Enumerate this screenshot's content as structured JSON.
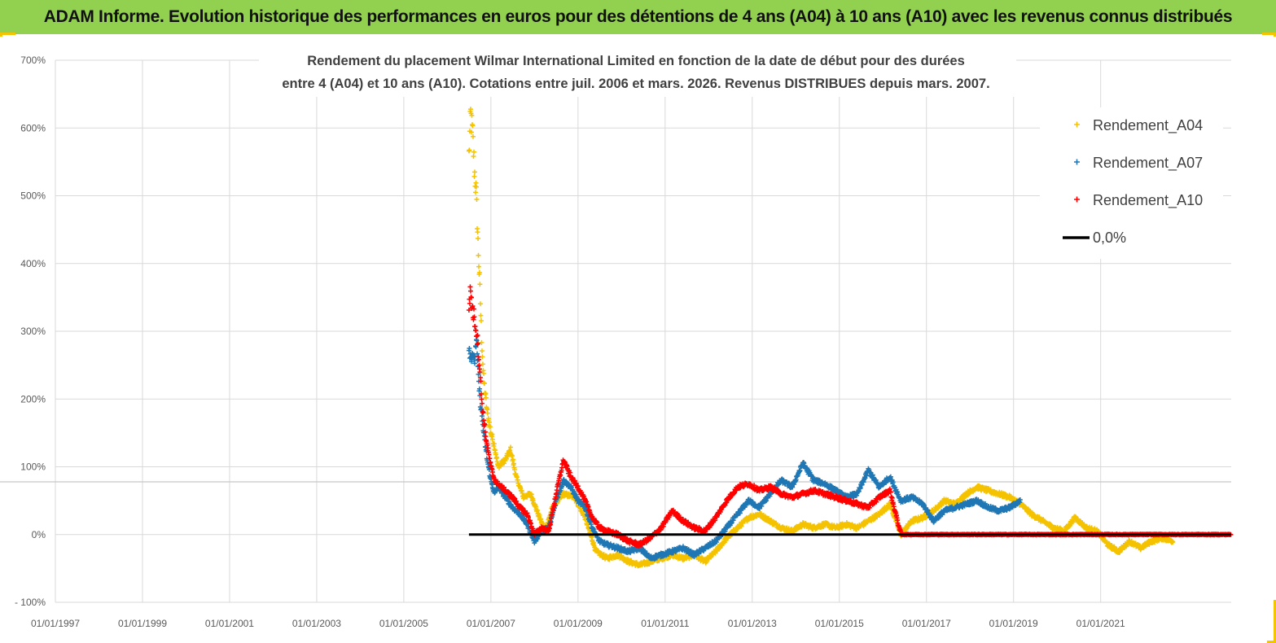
{
  "header": {
    "title": "ADAM Informe. Evolution historique des performances en euros pour des détentions de 4 ans (A04) à 10 ans (A10) avec les revenus connus distribués"
  },
  "chart_data": {
    "type": "scatter",
    "title_line1": "Rendement du placement Wilmar International Limited en fonction de la date de début pour des durées",
    "title_line2": "entre 4 (A04) et 10 ans (A10).  Cotations entre juil. 2006 et mars. 2026. Revenus DISTRIBUES depuis mars. 2007.",
    "y_ticks": [
      "700%",
      "600%",
      "500%",
      "400%",
      "300%",
      "200%",
      "100%",
      "0%",
      "- 100%"
    ],
    "x_ticks": [
      "01/01/1997",
      "01/01/1999",
      "01/01/2001",
      "01/01/2003",
      "01/01/2005",
      "01/01/2007",
      "01/01/2009",
      "01/01/2011",
      "01/01/2013",
      "01/01/2015",
      "01/01/2017",
      "01/01/2019",
      "01/01/2021"
    ],
    "ylim": [
      -100,
      700
    ],
    "xlim": [
      "1997-01-01",
      "2023-12-31"
    ],
    "grid": true,
    "legend_position": "top-right",
    "reference_line": {
      "name": "0,0%",
      "x": [
        "2006-07-01",
        "2023-12-31"
      ],
      "y": 0,
      "color": "#000000"
    },
    "series": [
      {
        "name": "Rendement_A04",
        "color": "#f5c200",
        "points": [
          [
            "2006-07-01",
            560
          ],
          [
            "2006-07-15",
            620
          ],
          [
            "2006-08-01",
            590
          ],
          [
            "2006-08-15",
            540
          ],
          [
            "2006-09-01",
            500
          ],
          [
            "2006-09-15",
            430
          ],
          [
            "2006-10-01",
            360
          ],
          [
            "2006-10-15",
            290
          ],
          [
            "2006-11-01",
            230
          ],
          [
            "2006-12-01",
            180
          ],
          [
            "2007-01-01",
            150
          ],
          [
            "2007-02-01",
            130
          ],
          [
            "2007-03-01",
            100
          ],
          [
            "2007-05-01",
            110
          ],
          [
            "2007-06-15",
            125
          ],
          [
            "2007-08-01",
            85
          ],
          [
            "2007-10-01",
            55
          ],
          [
            "2007-12-01",
            60
          ],
          [
            "2008-02-01",
            30
          ],
          [
            "2008-04-01",
            5
          ],
          [
            "2008-06-01",
            40
          ],
          [
            "2008-09-01",
            60
          ],
          [
            "2008-12-01",
            55
          ],
          [
            "2009-03-01",
            25
          ],
          [
            "2009-06-01",
            -25
          ],
          [
            "2009-09-01",
            -35
          ],
          [
            "2009-12-01",
            -30
          ],
          [
            "2010-03-01",
            -40
          ],
          [
            "2010-06-01",
            -45
          ],
          [
            "2010-09-01",
            -40
          ],
          [
            "2010-12-01",
            -35
          ],
          [
            "2011-03-01",
            -30
          ],
          [
            "2011-06-01",
            -35
          ],
          [
            "2011-09-01",
            -30
          ],
          [
            "2011-12-01",
            -40
          ],
          [
            "2012-03-01",
            -25
          ],
          [
            "2012-06-01",
            -5
          ],
          [
            "2012-09-01",
            10
          ],
          [
            "2012-12-01",
            25
          ],
          [
            "2013-03-01",
            30
          ],
          [
            "2013-06-01",
            20
          ],
          [
            "2013-09-01",
            10
          ],
          [
            "2013-12-01",
            5
          ],
          [
            "2014-03-01",
            15
          ],
          [
            "2014-06-01",
            10
          ],
          [
            "2014-09-01",
            15
          ],
          [
            "2014-12-01",
            10
          ],
          [
            "2015-03-01",
            15
          ],
          [
            "2015-06-01",
            10
          ],
          [
            "2015-09-01",
            20
          ],
          [
            "2015-12-01",
            30
          ],
          [
            "2016-03-01",
            45
          ],
          [
            "2016-06-01",
            0
          ],
          [
            "2016-09-01",
            20
          ],
          [
            "2016-12-01",
            25
          ],
          [
            "2017-03-01",
            35
          ],
          [
            "2017-06-01",
            50
          ],
          [
            "2017-09-01",
            45
          ],
          [
            "2017-12-01",
            60
          ],
          [
            "2018-03-01",
            70
          ],
          [
            "2018-06-01",
            65
          ],
          [
            "2018-09-01",
            60
          ],
          [
            "2018-12-01",
            55
          ],
          [
            "2019-03-01",
            45
          ],
          [
            "2019-06-01",
            30
          ],
          [
            "2019-09-01",
            20
          ],
          [
            "2019-12-01",
            10
          ],
          [
            "2020-03-01",
            5
          ],
          [
            "2020-06-01",
            25
          ],
          [
            "2020-09-01",
            10
          ],
          [
            "2020-12-01",
            5
          ],
          [
            "2021-03-01",
            -15
          ],
          [
            "2021-06-01",
            -25
          ],
          [
            "2021-09-01",
            -10
          ],
          [
            "2021-12-01",
            -20
          ],
          [
            "2022-03-01",
            -10
          ],
          [
            "2022-06-01",
            -5
          ],
          [
            "2022-09-01",
            -10
          ]
        ]
      },
      {
        "name": "Rendement_A07",
        "color": "#1f77b4",
        "points": [
          [
            "2006-07-01",
            280
          ],
          [
            "2006-07-15",
            260
          ],
          [
            "2006-08-01",
            270
          ],
          [
            "2006-08-15",
            250
          ],
          [
            "2006-09-01",
            290
          ],
          [
            "2006-09-15",
            240
          ],
          [
            "2006-10-01",
            200
          ],
          [
            "2006-10-15",
            180
          ],
          [
            "2006-11-01",
            150
          ],
          [
            "2006-12-01",
            110
          ],
          [
            "2007-01-01",
            80
          ],
          [
            "2007-02-01",
            60
          ],
          [
            "2007-03-01",
            70
          ],
          [
            "2007-05-01",
            55
          ],
          [
            "2007-07-01",
            40
          ],
          [
            "2007-09-01",
            30
          ],
          [
            "2007-11-01",
            15
          ],
          [
            "2008-01-01",
            -10
          ],
          [
            "2008-03-01",
            5
          ],
          [
            "2008-05-01",
            10
          ],
          [
            "2008-07-01",
            50
          ],
          [
            "2008-09-01",
            80
          ],
          [
            "2008-11-01",
            70
          ],
          [
            "2009-01-01",
            50
          ],
          [
            "2009-03-01",
            40
          ],
          [
            "2009-05-01",
            10
          ],
          [
            "2009-07-01",
            -10
          ],
          [
            "2009-09-01",
            -15
          ],
          [
            "2009-12-01",
            -20
          ],
          [
            "2010-03-01",
            -25
          ],
          [
            "2010-06-01",
            -20
          ],
          [
            "2010-09-01",
            -35
          ],
          [
            "2010-12-01",
            -30
          ],
          [
            "2011-03-01",
            -25
          ],
          [
            "2011-06-01",
            -20
          ],
          [
            "2011-09-01",
            -30
          ],
          [
            "2011-12-01",
            -20
          ],
          [
            "2012-03-01",
            -10
          ],
          [
            "2012-06-01",
            10
          ],
          [
            "2012-09-01",
            30
          ],
          [
            "2012-12-01",
            50
          ],
          [
            "2013-03-01",
            40
          ],
          [
            "2013-06-01",
            60
          ],
          [
            "2013-09-01",
            80
          ],
          [
            "2013-12-01",
            70
          ],
          [
            "2014-03-01",
            105
          ],
          [
            "2014-06-01",
            80
          ],
          [
            "2014-09-01",
            75
          ],
          [
            "2014-12-01",
            65
          ],
          [
            "2015-03-01",
            55
          ],
          [
            "2015-06-01",
            60
          ],
          [
            "2015-09-01",
            95
          ],
          [
            "2015-12-01",
            70
          ],
          [
            "2016-03-01",
            85
          ],
          [
            "2016-06-01",
            50
          ],
          [
            "2016-09-01",
            55
          ],
          [
            "2016-12-01",
            45
          ],
          [
            "2017-03-01",
            20
          ],
          [
            "2017-06-01",
            35
          ],
          [
            "2017-09-01",
            40
          ],
          [
            "2017-12-01",
            45
          ],
          [
            "2018-03-01",
            50
          ],
          [
            "2018-06-01",
            40
          ],
          [
            "2018-09-01",
            35
          ],
          [
            "2018-12-01",
            40
          ],
          [
            "2019-03-01",
            50
          ]
        ]
      },
      {
        "name": "Rendement_A10",
        "color": "#ff0000",
        "points": [
          [
            "2006-07-01",
            340
          ],
          [
            "2006-07-15",
            360
          ],
          [
            "2006-08-01",
            330
          ],
          [
            "2006-08-15",
            320
          ],
          [
            "2006-09-01",
            300
          ],
          [
            "2006-09-15",
            280
          ],
          [
            "2006-10-01",
            240
          ],
          [
            "2006-10-15",
            200
          ],
          [
            "2006-11-01",
            170
          ],
          [
            "2006-12-01",
            130
          ],
          [
            "2007-01-01",
            100
          ],
          [
            "2007-02-01",
            80
          ],
          [
            "2007-03-01",
            75
          ],
          [
            "2007-05-01",
            65
          ],
          [
            "2007-07-01",
            55
          ],
          [
            "2007-09-01",
            40
          ],
          [
            "2007-11-01",
            30
          ],
          [
            "2008-01-01",
            0
          ],
          [
            "2008-03-01",
            10
          ],
          [
            "2008-05-01",
            5
          ],
          [
            "2008-07-01",
            60
          ],
          [
            "2008-09-01",
            110
          ],
          [
            "2008-11-01",
            85
          ],
          [
            "2009-01-01",
            70
          ],
          [
            "2009-03-01",
            50
          ],
          [
            "2009-05-01",
            25
          ],
          [
            "2009-07-01",
            10
          ],
          [
            "2009-09-01",
            5
          ],
          [
            "2009-12-01",
            0
          ],
          [
            "2010-03-01",
            -10
          ],
          [
            "2010-06-01",
            -15
          ],
          [
            "2010-09-01",
            -5
          ],
          [
            "2010-12-01",
            10
          ],
          [
            "2011-03-01",
            35
          ],
          [
            "2011-06-01",
            20
          ],
          [
            "2011-09-01",
            10
          ],
          [
            "2011-12-01",
            5
          ],
          [
            "2012-03-01",
            25
          ],
          [
            "2012-06-01",
            50
          ],
          [
            "2012-09-01",
            70
          ],
          [
            "2012-12-01",
            75
          ],
          [
            "2013-03-01",
            65
          ],
          [
            "2013-06-01",
            70
          ],
          [
            "2013-09-01",
            60
          ],
          [
            "2013-12-01",
            55
          ],
          [
            "2014-03-01",
            60
          ],
          [
            "2014-06-01",
            65
          ],
          [
            "2014-09-01",
            60
          ],
          [
            "2014-12-01",
            55
          ],
          [
            "2015-03-01",
            50
          ],
          [
            "2015-06-01",
            45
          ],
          [
            "2015-09-01",
            40
          ],
          [
            "2015-12-01",
            55
          ],
          [
            "2016-03-01",
            65
          ],
          [
            "2016-06-01",
            0
          ],
          [
            "2017-06-01",
            0
          ],
          [
            "2018-06-01",
            0
          ],
          [
            "2019-06-01",
            0
          ],
          [
            "2020-06-01",
            0
          ],
          [
            "2021-06-01",
            0
          ],
          [
            "2022-06-01",
            0
          ],
          [
            "2023-12-31",
            0
          ]
        ]
      }
    ]
  }
}
